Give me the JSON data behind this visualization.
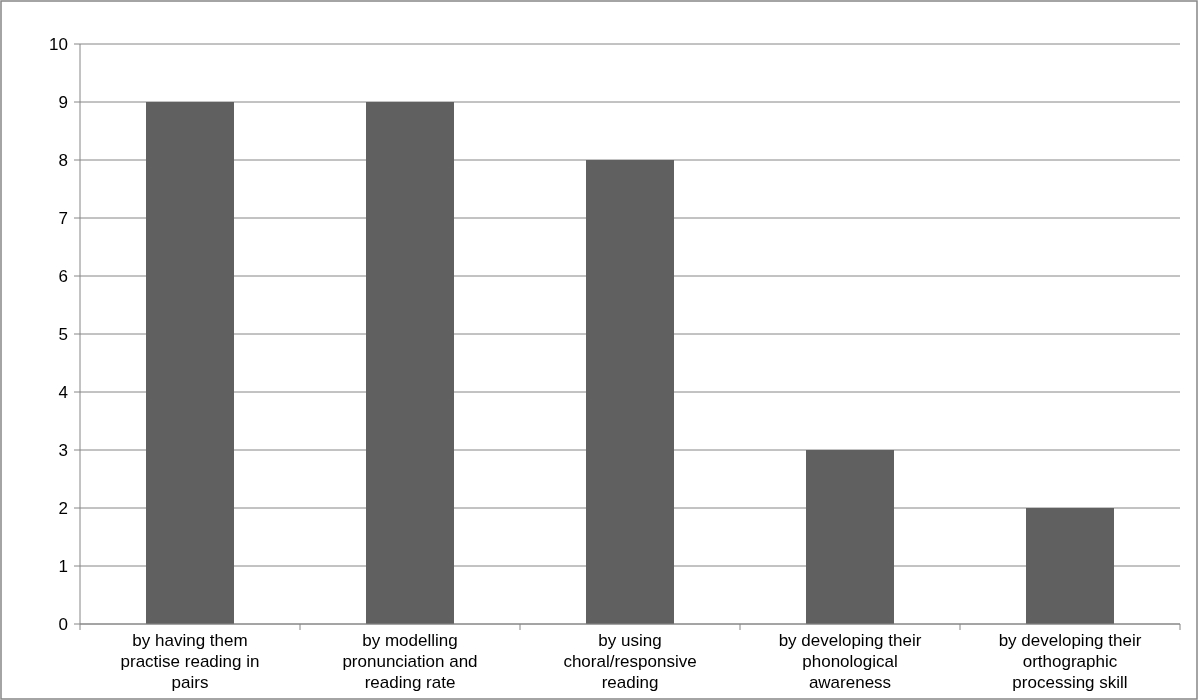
{
  "chart_data": {
    "type": "bar",
    "categories": [
      "by having them practise reading in pairs",
      "by modelling pronunciation and reading rate",
      "by using choral/responsive reading",
      "by developing their phonological awareness",
      "by developing their orthographic processing skill"
    ],
    "values": [
      9,
      9,
      8,
      3,
      2
    ],
    "color": "#606060",
    "ylim": [
      0,
      10
    ],
    "yticks": [
      0,
      1,
      2,
      3,
      4,
      5,
      6,
      7,
      8,
      9,
      10
    ],
    "grid": "y"
  }
}
